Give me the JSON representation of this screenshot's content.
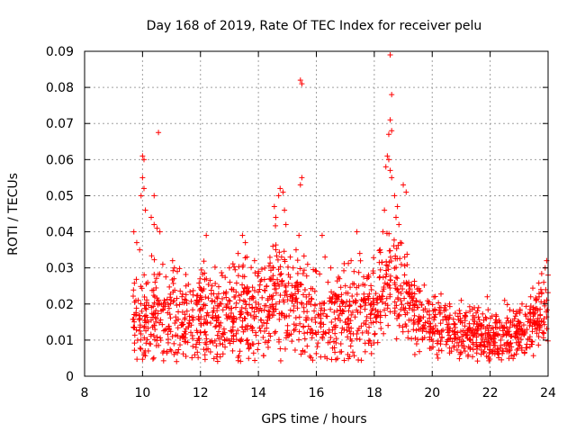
{
  "chart_data": {
    "type": "scatter",
    "title": "Day 168 of 2019, Rate Of TEC Index for receiver pelu",
    "xlabel": "GPS time / hours",
    "ylabel": "ROTI / TECUs",
    "xlim": [
      8,
      24
    ],
    "ylim": [
      0,
      0.09
    ],
    "xticks": [
      "8",
      "10",
      "12",
      "14",
      "16",
      "18",
      "20",
      "22",
      "24"
    ],
    "yticks": [
      "0",
      "0.01",
      "0.02",
      "0.03",
      "0.04",
      "0.05",
      "0.06",
      "0.07",
      "0.08",
      "0.09"
    ],
    "grid": true,
    "marker": "+",
    "color": "#ff0000",
    "outliers": [
      [
        9.7,
        0.04
      ],
      [
        9.8,
        0.037
      ],
      [
        9.9,
        0.035
      ],
      [
        10.0,
        0.061
      ],
      [
        10.05,
        0.06
      ],
      [
        10.0,
        0.055
      ],
      [
        10.05,
        0.052
      ],
      [
        9.95,
        0.05
      ],
      [
        10.1,
        0.046
      ],
      [
        10.3,
        0.044
      ],
      [
        10.4,
        0.042
      ],
      [
        10.5,
        0.041
      ],
      [
        10.6,
        0.04
      ],
      [
        10.4,
        0.05
      ],
      [
        10.55,
        0.0675
      ],
      [
        10.7,
        0.031
      ],
      [
        11.1,
        0.03
      ],
      [
        11.2,
        0.029
      ],
      [
        11.5,
        0.025
      ],
      [
        12.2,
        0.039
      ],
      [
        12.4,
        0.025
      ],
      [
        13.0,
        0.03
      ],
      [
        13.3,
        0.034
      ],
      [
        13.45,
        0.039
      ],
      [
        13.55,
        0.037
      ],
      [
        13.6,
        0.033
      ],
      [
        14.0,
        0.029
      ],
      [
        14.5,
        0.036
      ],
      [
        14.6,
        0.044
      ],
      [
        14.7,
        0.05
      ],
      [
        14.75,
        0.052
      ],
      [
        14.85,
        0.051
      ],
      [
        14.9,
        0.046
      ],
      [
        14.95,
        0.042
      ],
      [
        14.55,
        0.047
      ],
      [
        14.8,
        0.033
      ],
      [
        15.1,
        0.033
      ],
      [
        15.2,
        0.03
      ],
      [
        15.3,
        0.035
      ],
      [
        15.4,
        0.039
      ],
      [
        15.45,
        0.082
      ],
      [
        15.5,
        0.081
      ],
      [
        15.5,
        0.055
      ],
      [
        15.45,
        0.053
      ],
      [
        15.7,
        0.031
      ],
      [
        16.0,
        0.029
      ],
      [
        16.2,
        0.039
      ],
      [
        16.3,
        0.033
      ],
      [
        16.5,
        0.03
      ],
      [
        16.8,
        0.027
      ],
      [
        17.2,
        0.032
      ],
      [
        17.3,
        0.029
      ],
      [
        17.4,
        0.04
      ],
      [
        17.5,
        0.034
      ],
      [
        17.8,
        0.028
      ],
      [
        18.2,
        0.035
      ],
      [
        18.3,
        0.04
      ],
      [
        18.35,
        0.046
      ],
      [
        18.4,
        0.058
      ],
      [
        18.45,
        0.061
      ],
      [
        18.5,
        0.06
      ],
      [
        18.55,
        0.057
      ],
      [
        18.6,
        0.055
      ],
      [
        18.5,
        0.067
      ],
      [
        18.55,
        0.071
      ],
      [
        18.6,
        0.078
      ],
      [
        18.55,
        0.089
      ],
      [
        18.6,
        0.068
      ],
      [
        18.7,
        0.05
      ],
      [
        18.75,
        0.044
      ],
      [
        18.85,
        0.042
      ],
      [
        18.9,
        0.037
      ],
      [
        18.8,
        0.047
      ],
      [
        19.0,
        0.053
      ],
      [
        19.1,
        0.051
      ],
      [
        19.05,
        0.033
      ],
      [
        19.2,
        0.025
      ],
      [
        19.3,
        0.022
      ],
      [
        19.5,
        0.019
      ],
      [
        19.9,
        0.017
      ],
      [
        20.3,
        0.019
      ],
      [
        20.6,
        0.02
      ],
      [
        21.0,
        0.021
      ],
      [
        21.3,
        0.018
      ],
      [
        21.6,
        0.019
      ],
      [
        21.9,
        0.022
      ],
      [
        22.2,
        0.017
      ],
      [
        22.5,
        0.021
      ],
      [
        22.8,
        0.018
      ],
      [
        23.1,
        0.02
      ],
      [
        23.4,
        0.022
      ],
      [
        23.6,
        0.021
      ],
      [
        23.75,
        0.024
      ],
      [
        23.85,
        0.026
      ],
      [
        23.9,
        0.03
      ],
      [
        23.95,
        0.032
      ],
      [
        24.0,
        0.028
      ],
      [
        23.5,
        0.015
      ],
      [
        20.2,
        0.005
      ],
      [
        19.4,
        0.006
      ]
    ],
    "band": [
      [
        9.65,
        0.017,
        0.01
      ],
      [
        10.0,
        0.016,
        0.011
      ],
      [
        10.5,
        0.016,
        0.011
      ],
      [
        11.0,
        0.016,
        0.012
      ],
      [
        11.5,
        0.016,
        0.011
      ],
      [
        12.0,
        0.015,
        0.011
      ],
      [
        12.5,
        0.016,
        0.011
      ],
      [
        13.0,
        0.016,
        0.011
      ],
      [
        13.5,
        0.018,
        0.011
      ],
      [
        14.0,
        0.018,
        0.012
      ],
      [
        14.5,
        0.022,
        0.012
      ],
      [
        15.0,
        0.021,
        0.012
      ],
      [
        15.5,
        0.019,
        0.012
      ],
      [
        16.0,
        0.016,
        0.011
      ],
      [
        16.5,
        0.016,
        0.011
      ],
      [
        17.0,
        0.017,
        0.011
      ],
      [
        17.5,
        0.017,
        0.011
      ],
      [
        18.0,
        0.02,
        0.011
      ],
      [
        18.5,
        0.028,
        0.013
      ],
      [
        19.0,
        0.022,
        0.011
      ],
      [
        19.5,
        0.016,
        0.007
      ],
      [
        20.0,
        0.014,
        0.006
      ],
      [
        20.5,
        0.013,
        0.006
      ],
      [
        21.0,
        0.013,
        0.006
      ],
      [
        21.5,
        0.012,
        0.006
      ],
      [
        22.0,
        0.011,
        0.006
      ],
      [
        22.5,
        0.011,
        0.006
      ],
      [
        23.0,
        0.012,
        0.006
      ],
      [
        23.5,
        0.015,
        0.007
      ],
      [
        24.0,
        0.02,
        0.008
      ]
    ]
  }
}
